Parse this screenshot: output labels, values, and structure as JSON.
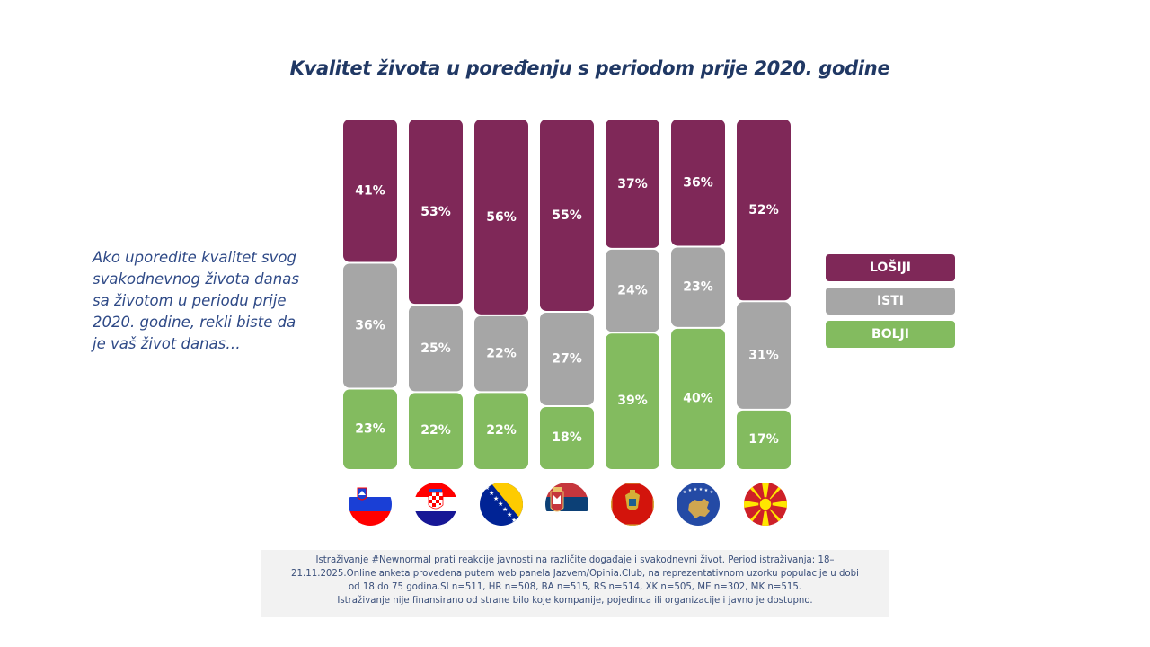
{
  "title": "Kvalitet života u poređenju s periodom prije 2020. godine",
  "question": "Ako uporedite kvalitet svog svakodnevnog života danas sa životom u periodu prije 2020. godine, rekli biste da je vaš život danas…",
  "colors": {
    "losiji": "#7f2858",
    "isti": "#a6a6a6",
    "bolji": "#83bb5f",
    "title": "#203864"
  },
  "legend": [
    {
      "key": "losiji",
      "label": "LOŠIJI"
    },
    {
      "key": "isti",
      "label": "ISTI"
    },
    {
      "key": "bolji",
      "label": "BOLJI"
    }
  ],
  "chart_data": {
    "type": "bar",
    "stacked": true,
    "title": "Kvalitet života u poređenju s periodom prije 2020. godine",
    "xlabel": "",
    "ylabel": "",
    "ylim": [
      0,
      100
    ],
    "legend_position": "right",
    "categories": [
      "SI",
      "HR",
      "BA",
      "RS",
      "ME",
      "XK",
      "MK"
    ],
    "category_icons": [
      "slovenia-flag-icon",
      "croatia-flag-icon",
      "bosnia-flag-icon",
      "serbia-flag-icon",
      "montenegro-flag-icon",
      "kosovo-flag-icon",
      "north-macedonia-flag-icon"
    ],
    "series": [
      {
        "name": "LOŠIJI",
        "key": "losiji",
        "values": [
          41,
          53,
          56,
          55,
          37,
          36,
          52
        ]
      },
      {
        "name": "ISTI",
        "key": "isti",
        "values": [
          36,
          25,
          22,
          27,
          24,
          23,
          31
        ]
      },
      {
        "name": "BOLJI",
        "key": "bolji",
        "values": [
          23,
          22,
          22,
          18,
          39,
          40,
          17
        ]
      }
    ],
    "value_suffix": "%"
  },
  "footnote": {
    "lines": [
      "Istraživanje #Newnormal prati reakcije javnosti na različite događaje i svakodnevni život. Period istraživanja: 18–",
      "21.11.2025.Online anketa provedena putem web panela Jazvem/Opinia.Club, na reprezentativnom uzorku populacije u dobi",
      "od 18 do 75 godina.SI n=511, HR n=508, BA n=515, RS n=514, XK n=505, ME n=302, MK n=515.",
      "Istraživanje nije finansirano od strane bilo koje kompanije, pojedinca ili organizacije i javno je dostupno."
    ]
  }
}
